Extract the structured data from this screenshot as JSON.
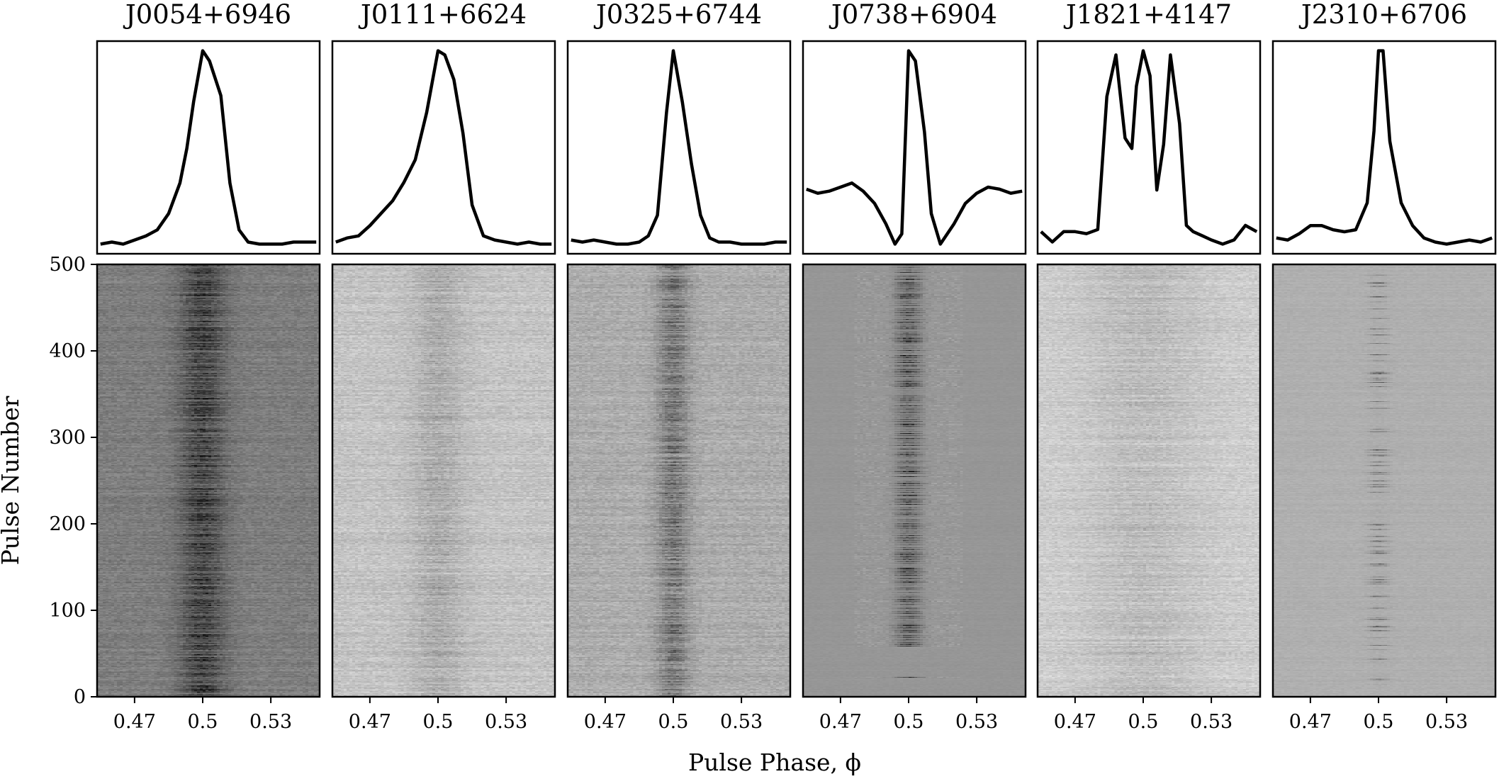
{
  "figure": {
    "xlabel": "Pulse Phase, ϕ",
    "ylabel": "Pulse Number",
    "colors": {
      "profile_line": "#000000",
      "axes": "#000000",
      "background": "#ffffff"
    }
  },
  "chart_data": {
    "type": "heatmap",
    "layout": "1 row x 6 columns; each column = average profile (top) + single-pulse stack (bottom)",
    "shared_x": {
      "label": "Pulse Phase, ϕ",
      "xlim": [
        0.4535,
        0.5515
      ],
      "ticks": [
        0.47,
        0.5,
        0.53
      ],
      "tick_labels": [
        "0.47",
        "0.5",
        "0.53"
      ]
    },
    "shared_y_stack": {
      "label": "Pulse Number",
      "ylim": [
        0,
        500
      ],
      "ticks": [
        0,
        100,
        200,
        300,
        400,
        500
      ],
      "tick_labels": [
        "0",
        "100",
        "200",
        "300",
        "400",
        "500"
      ]
    },
    "colormap": "grayscale (darker = brighter emission)",
    "panels": [
      {
        "name": "J0054+6946",
        "profile_x": [
          0.455,
          0.46,
          0.465,
          0.47,
          0.475,
          0.48,
          0.485,
          0.49,
          0.493,
          0.496,
          0.5,
          0.503,
          0.508,
          0.512,
          0.516,
          0.52,
          0.525,
          0.53,
          0.535,
          0.54,
          0.545,
          0.55
        ],
        "profile_y": [
          0.05,
          0.06,
          0.05,
          0.07,
          0.09,
          0.12,
          0.2,
          0.35,
          0.52,
          0.75,
          1.0,
          0.95,
          0.78,
          0.35,
          0.12,
          0.06,
          0.05,
          0.05,
          0.05,
          0.06,
          0.06,
          0.06
        ],
        "stack": {
          "background": 125,
          "noise": 28,
          "pulse_center": 0.5,
          "pulse_width": 0.007,
          "pulse_strength": 60,
          "mode": "steady"
        }
      },
      {
        "name": "J0111+6624",
        "profile_x": [
          0.455,
          0.46,
          0.465,
          0.47,
          0.475,
          0.48,
          0.485,
          0.49,
          0.495,
          0.5,
          0.503,
          0.507,
          0.511,
          0.515,
          0.52,
          0.525,
          0.53,
          0.535,
          0.54,
          0.545,
          0.55
        ],
        "profile_y": [
          0.07,
          0.09,
          0.1,
          0.15,
          0.21,
          0.27,
          0.36,
          0.47,
          0.7,
          1.0,
          0.98,
          0.86,
          0.6,
          0.25,
          0.1,
          0.08,
          0.07,
          0.06,
          0.07,
          0.06,
          0.06
        ],
        "stack": {
          "background": 195,
          "noise": 30,
          "pulse_center": 0.5,
          "pulse_width": 0.008,
          "pulse_strength": 25,
          "mode": "steady"
        }
      },
      {
        "name": "J0325+6744",
        "profile_x": [
          0.455,
          0.46,
          0.465,
          0.47,
          0.475,
          0.48,
          0.485,
          0.489,
          0.493,
          0.497,
          0.5,
          0.504,
          0.508,
          0.512,
          0.516,
          0.52,
          0.525,
          0.53,
          0.535,
          0.54,
          0.545,
          0.55
        ],
        "profile_y": [
          0.08,
          0.07,
          0.08,
          0.07,
          0.06,
          0.06,
          0.07,
          0.1,
          0.2,
          0.7,
          1.0,
          0.75,
          0.45,
          0.2,
          0.09,
          0.07,
          0.07,
          0.06,
          0.06,
          0.06,
          0.07,
          0.07
        ],
        "stack": {
          "background": 172,
          "noise": 30,
          "pulse_center": 0.5,
          "pulse_width": 0.005,
          "pulse_strength": 55,
          "mode": "steady"
        }
      },
      {
        "name": "J0738+6904",
        "profile_x": [
          0.455,
          0.46,
          0.465,
          0.47,
          0.475,
          0.48,
          0.485,
          0.49,
          0.494,
          0.497,
          0.5,
          0.503,
          0.507,
          0.51,
          0.514,
          0.52,
          0.525,
          0.53,
          0.535,
          0.54,
          0.545,
          0.55
        ],
        "profile_y": [
          0.32,
          0.3,
          0.31,
          0.33,
          0.35,
          0.31,
          0.25,
          0.15,
          0.05,
          0.1,
          1.0,
          0.95,
          0.6,
          0.2,
          0.05,
          0.15,
          0.25,
          0.3,
          0.33,
          0.32,
          0.3,
          0.31
        ],
        "stack": {
          "background": 150,
          "noise": 6,
          "pulse_center": 0.5,
          "pulse_width": 0.004,
          "pulse_strength": 90,
          "mode": "nulling",
          "active_pulses": [
            22,
            58,
            60,
            62,
            64,
            66,
            68,
            70,
            72,
            74,
            76,
            78,
            80,
            82,
            84,
            86,
            88,
            90,
            92,
            94,
            96,
            98,
            100,
            102,
            104,
            106,
            108,
            110,
            112,
            114,
            116,
            118,
            120,
            122,
            124,
            126,
            128,
            130,
            132,
            134,
            136,
            138,
            140,
            142,
            144,
            146,
            148,
            150,
            152,
            154,
            156,
            158,
            160,
            162,
            164,
            166,
            168,
            170,
            172,
            174,
            176,
            178,
            180,
            182,
            184,
            186,
            188,
            190,
            192,
            194,
            196,
            198,
            200,
            202,
            204,
            206,
            208,
            210,
            212,
            214,
            216,
            218,
            220,
            222,
            224,
            226,
            228,
            230,
            232,
            234,
            236,
            238,
            240,
            242,
            244,
            246,
            248,
            250,
            252,
            254,
            256,
            258,
            260,
            262,
            264,
            266,
            268,
            270,
            272,
            274,
            276,
            278,
            280,
            282,
            284,
            286,
            288,
            290,
            292,
            294,
            296,
            298,
            300,
            302,
            304,
            306,
            308,
            310,
            312,
            314,
            316,
            318,
            320,
            322,
            324,
            326,
            328,
            330,
            332,
            334,
            336,
            338,
            340,
            342,
            344,
            346,
            348,
            350,
            352,
            354,
            356,
            358,
            360,
            362,
            364,
            366,
            368,
            370,
            372,
            374,
            376,
            378,
            380,
            382,
            384,
            386,
            388,
            390,
            392,
            394,
            396,
            398,
            400,
            402,
            404,
            406,
            408,
            410,
            412,
            414,
            416,
            418,
            420,
            422,
            424,
            426,
            428,
            430,
            432,
            434,
            436,
            438,
            440,
            442,
            444,
            446,
            448,
            450,
            452,
            454,
            456,
            458,
            460,
            462,
            464,
            466,
            468,
            470,
            472,
            474,
            476,
            478,
            480,
            482,
            484,
            486,
            488,
            490,
            492,
            494,
            496,
            498
          ]
        }
      },
      {
        "name": "J1821+4147",
        "profile_x": [
          0.455,
          0.46,
          0.465,
          0.47,
          0.475,
          0.48,
          0.484,
          0.488,
          0.492,
          0.495,
          0.497,
          0.5,
          0.503,
          0.506,
          0.509,
          0.512,
          0.516,
          0.519,
          0.522,
          0.526,
          0.53,
          0.535,
          0.54,
          0.545,
          0.55
        ],
        "profile_y": [
          0.1,
          0.05,
          0.1,
          0.1,
          0.09,
          0.11,
          0.75,
          0.95,
          0.55,
          0.5,
          0.8,
          0.97,
          0.85,
          0.3,
          0.52,
          0.95,
          0.62,
          0.13,
          0.1,
          0.08,
          0.06,
          0.04,
          0.06,
          0.13,
          0.1
        ],
        "stack": {
          "background": 205,
          "noise": 26,
          "pulse_center": 0.5,
          "pulse_width": 0.018,
          "pulse_strength": 18,
          "mode": "steady"
        }
      },
      {
        "name": "J2310+6706",
        "profile_x": [
          0.455,
          0.46,
          0.465,
          0.47,
          0.475,
          0.48,
          0.485,
          0.49,
          0.495,
          0.498,
          0.5,
          0.502,
          0.505,
          0.51,
          0.515,
          0.52,
          0.525,
          0.53,
          0.535,
          0.54,
          0.545,
          0.55
        ],
        "profile_y": [
          0.08,
          0.07,
          0.1,
          0.14,
          0.14,
          0.12,
          0.11,
          0.12,
          0.25,
          0.6,
          0.99,
          0.99,
          0.55,
          0.25,
          0.14,
          0.08,
          0.06,
          0.05,
          0.06,
          0.07,
          0.06,
          0.08
        ],
        "stack": {
          "background": 175,
          "noise": 10,
          "pulse_center": 0.5,
          "pulse_width": 0.003,
          "pulse_strength": 45,
          "mode": "sparse"
        }
      }
    ]
  }
}
